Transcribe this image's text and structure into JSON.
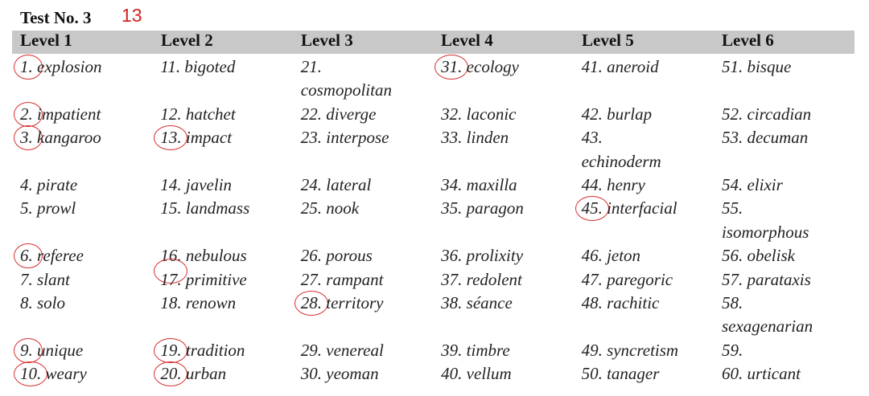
{
  "header": {
    "title": "Test No. 3",
    "score": "13"
  },
  "table": {
    "headers": [
      "Level 1",
      "Level 2",
      "Level 3",
      "Level 4",
      "Level 5",
      "Level 6"
    ],
    "rows": [
      [
        "1. explosion",
        "11. bigoted",
        "21. cosmopolitan",
        "31. ecology",
        "41. aneroid",
        "51. bisque"
      ],
      [
        "2. impatient",
        "12. hatchet",
        "22. diverge",
        "32. laconic",
        "42. burlap",
        "52. circadian"
      ],
      [
        "3. kangaroo",
        "13. impact",
        "23. interpose",
        "33. linden",
        "43. echinoderm",
        "53. decuman"
      ],
      [
        "4. pirate",
        "14. javelin",
        "24. lateral",
        "34. maxilla",
        "44. henry",
        "54. elixir"
      ],
      [
        "5. prowl",
        "15. landmass",
        "25. nook",
        "35. paragon",
        "45. interfacial",
        "55. isomorphous"
      ],
      [
        "6. referee",
        "16. nebulous",
        "26. porous",
        "36. prolixity",
        "46. jeton",
        "56. obelisk"
      ],
      [
        "7. slant",
        "17. primitive",
        "27. rampant",
        "37. redolent",
        "47. paregoric",
        "57. parataxis"
      ],
      [
        "8. solo",
        "18. renown",
        "28. territory",
        "38. séance",
        "48. rachitic",
        "58. sexagenarian"
      ],
      [
        "9. unique",
        "19. tradition",
        "29. venereal",
        "39. timbre",
        "49. syncretism",
        "59."
      ],
      [
        "10. weary",
        "20. urban",
        "30. yeoman",
        "40. vellum",
        "50. tanager",
        "60. urticant"
      ]
    ]
  }
}
